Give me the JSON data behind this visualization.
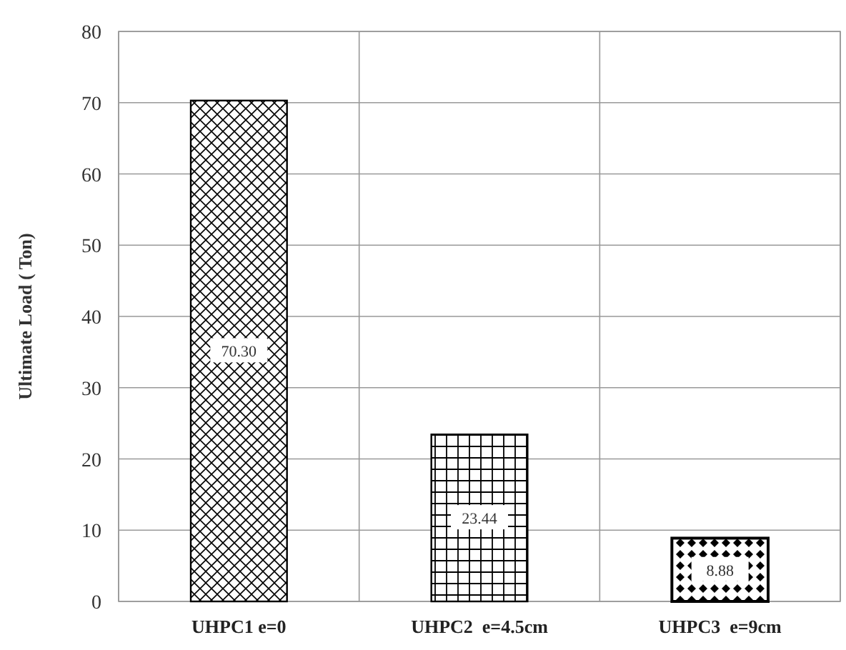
{
  "chart_data": {
    "type": "bar",
    "ylabel": "Ultimate Load ( Ton)",
    "categories": [
      "UHPC1 e=0",
      "UHPC2  e=4.5cm",
      "UHPC3  e=9cm"
    ],
    "values": [
      70.3,
      23.44,
      8.88
    ],
    "value_labels": [
      "70.30",
      "23.44",
      "8.88"
    ],
    "colors": [
      "#000000",
      "#000000",
      "#000000"
    ],
    "ylim": [
      0,
      80
    ],
    "yticks": [
      0,
      10,
      20,
      30,
      40,
      50,
      60,
      70,
      80
    ],
    "grid": true
  }
}
